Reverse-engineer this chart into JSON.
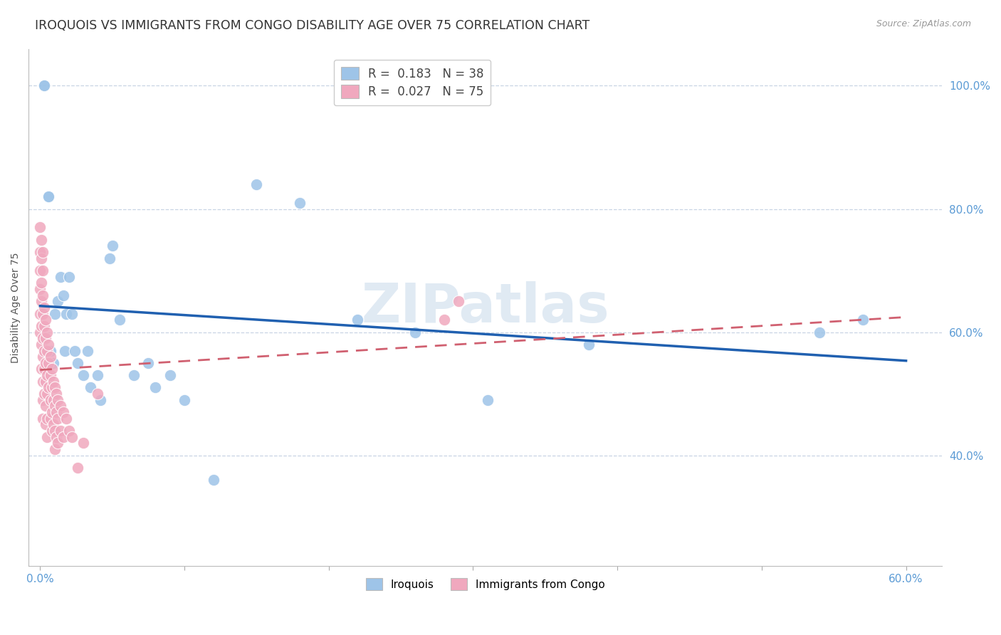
{
  "title": "IROQUOIS VS IMMIGRANTS FROM CONGO DISABILITY AGE OVER 75 CORRELATION CHART",
  "source": "Source: ZipAtlas.com",
  "ylabel": "Disability Age Over 75",
  "ytick_values": [
    0.4,
    0.6,
    0.8,
    1.0
  ],
  "xtick_values": [
    0.0,
    0.1,
    0.2,
    0.3,
    0.4,
    0.5,
    0.6
  ],
  "xlim": [
    -0.008,
    0.625
  ],
  "ylim": [
    0.22,
    1.06
  ],
  "legend_entries": [
    {
      "label": "R =  0.183   N = 38",
      "color": "#aac4e8"
    },
    {
      "label": "R =  0.027   N = 75",
      "color": "#f4a7b9"
    }
  ],
  "iroquois_x": [
    0.003,
    0.003,
    0.006,
    0.006,
    0.007,
    0.009,
    0.01,
    0.012,
    0.014,
    0.016,
    0.017,
    0.018,
    0.02,
    0.022,
    0.024,
    0.026,
    0.03,
    0.033,
    0.035,
    0.04,
    0.042,
    0.048,
    0.05,
    0.055,
    0.065,
    0.075,
    0.08,
    0.09,
    0.1,
    0.12,
    0.15,
    0.18,
    0.22,
    0.26,
    0.31,
    0.38,
    0.54,
    0.57
  ],
  "iroquois_y": [
    1.0,
    1.0,
    0.82,
    0.82,
    0.57,
    0.55,
    0.63,
    0.65,
    0.69,
    0.66,
    0.57,
    0.63,
    0.69,
    0.63,
    0.57,
    0.55,
    0.53,
    0.57,
    0.51,
    0.53,
    0.49,
    0.72,
    0.74,
    0.62,
    0.53,
    0.55,
    0.51,
    0.53,
    0.49,
    0.36,
    0.84,
    0.81,
    0.62,
    0.6,
    0.49,
    0.58,
    0.6,
    0.62
  ],
  "congo_x": [
    0.0,
    0.0,
    0.0,
    0.0,
    0.0,
    0.0,
    0.001,
    0.001,
    0.001,
    0.001,
    0.001,
    0.001,
    0.001,
    0.002,
    0.002,
    0.002,
    0.002,
    0.002,
    0.002,
    0.002,
    0.002,
    0.002,
    0.003,
    0.003,
    0.003,
    0.003,
    0.003,
    0.004,
    0.004,
    0.004,
    0.004,
    0.004,
    0.004,
    0.005,
    0.005,
    0.005,
    0.005,
    0.005,
    0.005,
    0.006,
    0.006,
    0.006,
    0.007,
    0.007,
    0.007,
    0.007,
    0.008,
    0.008,
    0.008,
    0.008,
    0.009,
    0.009,
    0.009,
    0.01,
    0.01,
    0.01,
    0.01,
    0.011,
    0.011,
    0.011,
    0.012,
    0.012,
    0.012,
    0.014,
    0.014,
    0.016,
    0.016,
    0.018,
    0.02,
    0.022,
    0.026,
    0.03,
    0.04,
    0.28,
    0.29
  ],
  "congo_y": [
    0.77,
    0.73,
    0.7,
    0.67,
    0.63,
    0.6,
    0.75,
    0.72,
    0.68,
    0.65,
    0.61,
    0.58,
    0.54,
    0.73,
    0.7,
    0.66,
    0.63,
    0.59,
    0.56,
    0.52,
    0.49,
    0.46,
    0.64,
    0.61,
    0.57,
    0.54,
    0.5,
    0.62,
    0.59,
    0.55,
    0.52,
    0.48,
    0.45,
    0.6,
    0.57,
    0.53,
    0.5,
    0.46,
    0.43,
    0.58,
    0.55,
    0.51,
    0.56,
    0.53,
    0.49,
    0.46,
    0.54,
    0.51,
    0.47,
    0.44,
    0.52,
    0.49,
    0.45,
    0.51,
    0.48,
    0.44,
    0.41,
    0.5,
    0.47,
    0.43,
    0.49,
    0.46,
    0.42,
    0.48,
    0.44,
    0.47,
    0.43,
    0.46,
    0.44,
    0.43,
    0.38,
    0.42,
    0.5,
    0.62,
    0.65
  ],
  "blue_color": "#9ec4e8",
  "pink_color": "#f0a8be",
  "blue_line_color": "#2060b0",
  "pink_line_color": "#d06070",
  "watermark": "ZIPatlas",
  "watermark_color": "#ccdcec",
  "background_color": "#ffffff",
  "grid_color": "#c8d4e4",
  "title_fontsize": 12.5,
  "axis_label_fontsize": 10,
  "tick_fontsize": 11,
  "legend_fontsize": 12,
  "source_fontsize": 9
}
